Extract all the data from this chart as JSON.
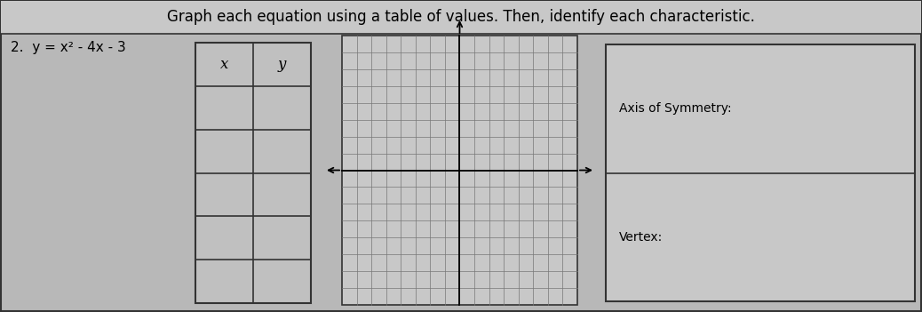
{
  "title": "Graph each equation using a table of values. Then, identify each characteristic.",
  "equation_label": "2.  y = x² - 4x - 3",
  "table_headers": [
    "x",
    "y"
  ],
  "table_rows": 5,
  "table_cols": 2,
  "grid_rows": 16,
  "grid_cols": 16,
  "axis_of_symmetry_label": "Axis of Symmetry:",
  "vertex_label": "Vertex:",
  "bg_color": "#b8b8b8",
  "title_bg_color": "#c8c8c8",
  "content_bg_color": "#b8b8b8",
  "table_fill": "#c0c0c0",
  "grid_fill": "#c8c8c8",
  "info_fill": "#c8c8c8",
  "border_color": "#333333",
  "grid_line_color": "#777777",
  "title_fontsize": 12,
  "label_fontsize": 11,
  "table_header_fontsize": 12
}
